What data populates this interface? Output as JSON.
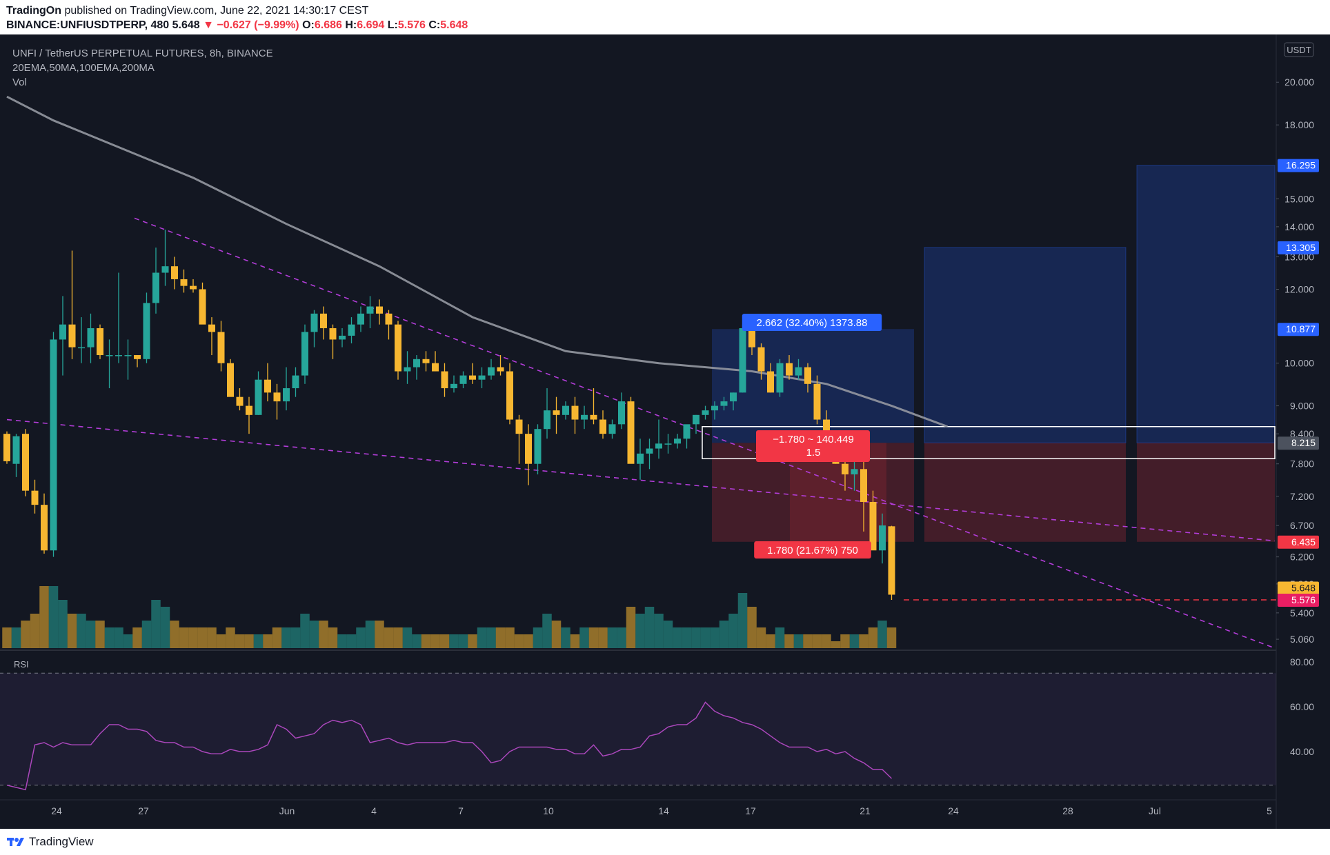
{
  "header": {
    "publisher": "TradingOn",
    "published_text": "published on TradingView.com, June 22, 2021 14:30:17 CEST",
    "symbol": "BINANCE:UNFIUSDTPERP, 480",
    "last": "5.648",
    "change": "▼ −0.627 (−9.99%)",
    "o_label": "O:",
    "o_value": "6.686",
    "h_label": "H:",
    "h_value": "6.694",
    "l_label": "L:",
    "l_value": "5.576",
    "c_label": "C:",
    "c_value": "5.648"
  },
  "legend": {
    "title": "UNFI / TetherUS PERPETUAL FUTURES, 8h, BINANCE",
    "indicators": "20EMA,50MA,100EMA,200MA",
    "volume": "Vol"
  },
  "axis": {
    "currency": "USDT",
    "rsi_label": "RSI"
  },
  "colors": {
    "background": "#131722",
    "bull": "#26a69a",
    "bear": "#f7b731",
    "ma": "#9598a1",
    "trendline": "#b33dd9",
    "rsi": "#ab47bc",
    "target": "#2962ff",
    "stop": "#f23645"
  },
  "annotations": {
    "target_label": "2.662 (32.40%) 1373.88",
    "stop_label": "1.780 (21.67%) 750",
    "range_label_line1": "−1.780 ~ 140.449",
    "range_label_line2": "1.5"
  },
  "price_tags": {
    "tag1": "16.295",
    "tag2": "13.305",
    "tag3": "10.877",
    "tag4": "8.215",
    "tag5": "6.435",
    "tag6": "5.576",
    "tag7": "5.648"
  },
  "footer": {
    "brand": "TradingView"
  },
  "chart_data": {
    "type": "candlestick",
    "title": "UNFI / TetherUS PERPETUAL FUTURES, 8h, BINANCE",
    "y_axis_ticks": [
      "20.000",
      "18.000",
      "15.000",
      "14.000",
      "13.000",
      "12.000",
      "10.000",
      "9.000",
      "8.400",
      "7.800",
      "7.200",
      "6.700",
      "6.200",
      "5.800",
      "5.400",
      "5.060"
    ],
    "y_axis_scale": "log",
    "ylim": [
      4.95,
      22.5
    ],
    "x_axis_ticks": [
      "24",
      "27",
      "Jun",
      "4",
      "7",
      "10",
      "14",
      "17",
      "21",
      "24",
      "28",
      "Jul",
      "5"
    ],
    "rsi_ticks": [
      "80.00",
      "60.00",
      "40.00"
    ],
    "rsi_range": [
      20,
      80
    ],
    "rsi_levels": [
      75,
      25
    ],
    "candles_ohlc": [
      [
        8.4,
        8.45,
        7.8,
        7.85
      ],
      [
        7.8,
        8.4,
        7.55,
        8.35
      ],
      [
        8.4,
        8.5,
        7.2,
        7.3
      ],
      [
        7.3,
        7.5,
        6.9,
        7.05
      ],
      [
        7.05,
        7.25,
        6.25,
        6.3
      ],
      [
        6.3,
        10.8,
        6.2,
        10.6
      ],
      [
        10.6,
        11.8,
        9.7,
        11.0
      ],
      [
        11.0,
        13.2,
        10.1,
        10.4
      ],
      [
        10.4,
        11.2,
        10.0,
        10.4
      ],
      [
        10.4,
        11.3,
        10.0,
        10.9
      ],
      [
        10.9,
        11.0,
        10.1,
        10.2
      ],
      [
        10.2,
        10.6,
        9.4,
        10.2
      ],
      [
        10.2,
        12.5,
        10.0,
        10.2
      ],
      [
        10.2,
        10.6,
        9.6,
        10.2
      ],
      [
        10.2,
        10.2,
        9.9,
        10.1
      ],
      [
        10.1,
        11.9,
        10.0,
        11.6
      ],
      [
        11.6,
        13.3,
        11.3,
        12.5
      ],
      [
        12.5,
        13.9,
        12.1,
        12.7
      ],
      [
        12.7,
        13.0,
        12.0,
        12.3
      ],
      [
        12.3,
        12.6,
        11.9,
        12.1
      ],
      [
        12.1,
        12.3,
        11.9,
        12.0
      ],
      [
        12.0,
        12.2,
        11.1,
        11.0
      ],
      [
        11.0,
        11.2,
        10.2,
        10.8
      ],
      [
        10.8,
        11.1,
        9.8,
        10.0
      ],
      [
        10.0,
        10.1,
        9.4,
        9.2
      ],
      [
        9.2,
        9.4,
        8.9,
        9.0
      ],
      [
        9.0,
        9.2,
        8.4,
        8.8
      ],
      [
        8.8,
        9.8,
        8.8,
        9.6
      ],
      [
        9.6,
        10.0,
        9.1,
        9.3
      ],
      [
        9.3,
        9.5,
        8.7,
        9.1
      ],
      [
        9.1,
        9.9,
        8.9,
        9.4
      ],
      [
        9.4,
        9.9,
        9.2,
        9.7
      ],
      [
        9.7,
        11.0,
        9.5,
        10.8
      ],
      [
        10.8,
        11.4,
        10.4,
        11.3
      ],
      [
        11.3,
        11.5,
        10.6,
        10.9
      ],
      [
        10.9,
        11.0,
        10.1,
        10.6
      ],
      [
        10.6,
        10.9,
        10.4,
        10.7
      ],
      [
        10.7,
        11.2,
        10.5,
        11.0
      ],
      [
        11.0,
        11.5,
        10.8,
        11.3
      ],
      [
        11.3,
        11.8,
        10.9,
        11.5
      ],
      [
        11.5,
        11.7,
        11.0,
        11.3
      ],
      [
        11.3,
        11.4,
        10.6,
        11.0
      ],
      [
        11.0,
        11.1,
        9.6,
        9.8
      ],
      [
        9.8,
        10.3,
        9.5,
        9.9
      ],
      [
        9.9,
        10.2,
        9.6,
        10.1
      ],
      [
        10.1,
        10.3,
        9.8,
        10.0
      ],
      [
        10.0,
        10.3,
        9.8,
        9.8
      ],
      [
        9.8,
        10.0,
        9.2,
        9.4
      ],
      [
        9.4,
        9.7,
        9.3,
        9.5
      ],
      [
        9.5,
        9.8,
        9.4,
        9.7
      ],
      [
        9.7,
        10.0,
        9.5,
        9.6
      ],
      [
        9.6,
        9.9,
        9.4,
        9.7
      ],
      [
        9.7,
        10.1,
        9.6,
        9.9
      ],
      [
        9.9,
        10.2,
        9.7,
        9.8
      ],
      [
        9.8,
        10.0,
        8.6,
        8.7
      ],
      [
        8.7,
        8.8,
        7.8,
        8.4
      ],
      [
        8.4,
        8.6,
        7.4,
        7.8
      ],
      [
        7.8,
        8.6,
        7.6,
        8.5
      ],
      [
        8.5,
        9.4,
        8.3,
        8.9
      ],
      [
        8.9,
        9.2,
        8.4,
        8.8
      ],
      [
        8.8,
        9.1,
        8.7,
        9.0
      ],
      [
        9.0,
        9.2,
        8.4,
        8.7
      ],
      [
        8.7,
        9.0,
        8.5,
        8.8
      ],
      [
        8.8,
        9.4,
        8.6,
        8.7
      ],
      [
        8.7,
        8.9,
        8.3,
        8.4
      ],
      [
        8.4,
        8.7,
        8.3,
        8.6
      ],
      [
        8.6,
        9.3,
        8.5,
        9.1
      ],
      [
        9.1,
        9.2,
        8.1,
        7.8
      ],
      [
        7.8,
        8.3,
        7.5,
        8.0
      ],
      [
        8.0,
        8.3,
        7.7,
        8.1
      ],
      [
        8.1,
        8.7,
        7.9,
        8.2
      ],
      [
        8.2,
        8.4,
        8.0,
        8.2
      ],
      [
        8.2,
        8.4,
        8.1,
        8.3
      ],
      [
        8.3,
        8.5,
        8.1,
        8.6
      ],
      [
        8.6,
        8.8,
        8.4,
        8.8
      ],
      [
        8.8,
        9.0,
        8.7,
        8.9
      ],
      [
        8.9,
        9.1,
        8.7,
        9.0
      ],
      [
        9.0,
        9.2,
        8.9,
        9.1
      ],
      [
        9.1,
        9.3,
        8.9,
        9.3
      ],
      [
        9.3,
        11.0,
        9.3,
        10.9
      ],
      [
        10.9,
        11.0,
        10.2,
        10.4
      ],
      [
        10.4,
        10.5,
        9.6,
        9.8
      ],
      [
        9.8,
        10.0,
        9.3,
        9.3
      ],
      [
        9.3,
        10.1,
        9.2,
        10.0
      ],
      [
        10.0,
        10.2,
        9.6,
        9.7
      ],
      [
        9.7,
        10.1,
        9.6,
        9.9
      ],
      [
        9.9,
        10.0,
        9.3,
        9.5
      ],
      [
        9.5,
        9.7,
        8.6,
        8.7
      ],
      [
        8.7,
        8.9,
        8.4,
        8.2
      ],
      [
        8.2,
        8.4,
        7.8,
        7.8
      ],
      [
        7.8,
        8.0,
        7.3,
        7.6
      ],
      [
        7.6,
        8.0,
        7.3,
        7.7
      ],
      [
        7.7,
        7.9,
        6.6,
        7.1
      ],
      [
        7.1,
        7.3,
        6.4,
        6.3
      ],
      [
        6.3,
        6.9,
        6.1,
        6.7
      ],
      [
        6.686,
        6.694,
        5.576,
        5.648
      ]
    ],
    "moving_average": [
      [
        0,
        19.3
      ],
      [
        5,
        18.2
      ],
      [
        20,
        15.8
      ],
      [
        30,
        14.1
      ],
      [
        40,
        12.7
      ],
      [
        50,
        11.2
      ],
      [
        60,
        10.3
      ],
      [
        70,
        10.0
      ],
      [
        80,
        9.8
      ],
      [
        88,
        9.5
      ],
      [
        95,
        9.0
      ],
      [
        101,
        8.55
      ]
    ],
    "volume": [
      3,
      3,
      4,
      5,
      9,
      9,
      7,
      5,
      5,
      4,
      4,
      3,
      3,
      2,
      3,
      4,
      7,
      6,
      4,
      3,
      3,
      3,
      3,
      2,
      3,
      2,
      2,
      2,
      2,
      3,
      3,
      3,
      5,
      4,
      4,
      3,
      2,
      2,
      3,
      4,
      4,
      3,
      3,
      3,
      2,
      2,
      2,
      2,
      2,
      2,
      2,
      3,
      3,
      3,
      3,
      2,
      2,
      3,
      5,
      4,
      3,
      2,
      3,
      3,
      3,
      3,
      3,
      6,
      5,
      6,
      5,
      4,
      3,
      3,
      3,
      3,
      3,
      4,
      5,
      8,
      6,
      3,
      2,
      3,
      2,
      2,
      2,
      2,
      2,
      1,
      2,
      2,
      2,
      3,
      4,
      3
    ],
    "rsi": [
      25,
      24,
      23,
      43,
      44,
      42,
      44,
      43,
      43,
      43,
      48,
      52,
      52,
      50,
      50,
      49,
      45,
      44,
      44,
      42,
      42,
      40,
      39,
      39,
      41,
      40,
      40,
      41,
      43,
      52,
      50,
      46,
      47,
      48,
      52,
      54,
      53,
      54,
      52,
      44,
      45,
      46,
      44,
      43,
      44,
      44,
      44,
      44,
      45,
      44,
      44,
      40,
      35,
      36,
      40,
      42,
      42,
      42,
      42,
      41,
      41,
      39,
      39,
      43,
      38,
      39,
      41,
      41,
      42,
      47,
      48,
      51,
      52,
      52,
      55,
      62,
      58,
      56,
      55,
      53,
      52,
      50,
      47,
      44,
      42,
      42,
      42,
      40,
      41,
      39,
      40,
      37,
      35,
      32,
      32,
      28
    ],
    "target_zone": [
      8.215,
      10.877
    ],
    "stop_zone": [
      6.435,
      8.215
    ],
    "target_zones_right": [
      13.305,
      16.295
    ],
    "low_line": 5.576
  }
}
